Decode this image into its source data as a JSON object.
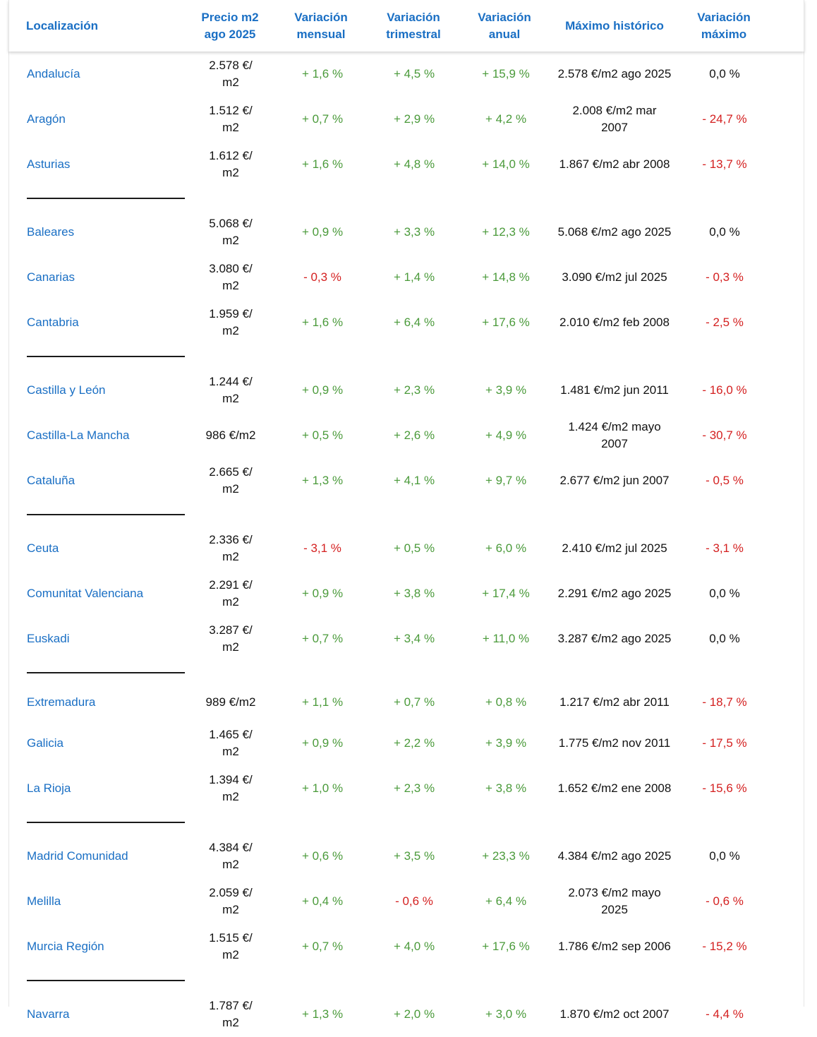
{
  "header": {
    "localizacion": "Localización",
    "precio_l1": "Precio m2",
    "precio_l2": "ago 2025",
    "var_mensual_l1": "Variación",
    "var_mensual_l2": "mensual",
    "var_trimestral_l1": "Variación",
    "var_trimestral_l2": "trimestral",
    "var_anual_l1": "Variación",
    "var_anual_l2": "anual",
    "maximo_historico": "Máximo histórico",
    "var_maximo_l1": "Variación",
    "var_maximo_l2": "máximo"
  },
  "colors": {
    "accent": "#1a6fc4",
    "positive": "#4a9a3a",
    "negative": "#d42020"
  },
  "groups": [
    [
      {
        "name": "Andalucía",
        "price": "2.578 €/\nm2",
        "monthly": "+ 1,6 %",
        "quarterly": "+ 4,5 %",
        "annual": "+ 15,9 %",
        "max": "2.578 €/m2 ago 2025",
        "var_max": "0,0 %"
      },
      {
        "name": "Aragón",
        "price": "1.512 €/\nm2",
        "monthly": "+ 0,7 %",
        "quarterly": "+ 2,9 %",
        "annual": "+ 4,2 %",
        "max": "2.008 €/m2 mar\n2007",
        "var_max": "- 24,7 %"
      },
      {
        "name": "Asturias",
        "price": "1.612 €/\nm2",
        "monthly": "+ 1,6 %",
        "quarterly": "+ 4,8 %",
        "annual": "+ 14,0 %",
        "max": "1.867 €/m2 abr 2008",
        "var_max": "- 13,7 %"
      }
    ],
    [
      {
        "name": "Baleares",
        "price": "5.068 €/\nm2",
        "monthly": "+ 0,9 %",
        "quarterly": "+ 3,3 %",
        "annual": "+ 12,3 %",
        "max": "5.068 €/m2 ago 2025",
        "var_max": "0,0 %"
      },
      {
        "name": "Canarias",
        "price": "3.080 €/\nm2",
        "monthly": "- 0,3 %",
        "quarterly": "+ 1,4 %",
        "annual": "+ 14,8 %",
        "max": "3.090 €/m2 jul 2025",
        "var_max": "- 0,3 %"
      },
      {
        "name": "Cantabria",
        "price": "1.959 €/\nm2",
        "monthly": "+ 1,6 %",
        "quarterly": "+ 6,4 %",
        "annual": "+ 17,6 %",
        "max": "2.010 €/m2 feb 2008",
        "var_max": "- 2,5 %"
      }
    ],
    [
      {
        "name": "Castilla y León",
        "price": "1.244 €/\nm2",
        "monthly": "+ 0,9 %",
        "quarterly": "+ 2,3 %",
        "annual": "+ 3,9 %",
        "max": "1.481 €/m2 jun 2011",
        "var_max": "- 16,0 %"
      },
      {
        "name": "Castilla-La Mancha",
        "price": "986 €/m2",
        "monthly": "+ 0,5 %",
        "quarterly": "+ 2,6 %",
        "annual": "+ 4,9 %",
        "max": "1.424 €/m2 mayo\n2007",
        "var_max": "- 30,7 %"
      },
      {
        "name": "Cataluña",
        "price": "2.665 €/\nm2",
        "monthly": "+ 1,3 %",
        "quarterly": "+ 4,1 %",
        "annual": "+ 9,7 %",
        "max": "2.677 €/m2 jun 2007",
        "var_max": "- 0,5 %"
      }
    ],
    [
      {
        "name": "Ceuta",
        "price": "2.336 €/\nm2",
        "monthly": "- 3,1 %",
        "quarterly": "+ 0,5 %",
        "annual": "+ 6,0 %",
        "max": "2.410 €/m2 jul 2025",
        "var_max": "- 3,1 %"
      },
      {
        "name": "Comunitat Valenciana",
        "price": "2.291 €/\nm2",
        "monthly": "+ 0,9 %",
        "quarterly": "+ 3,8 %",
        "annual": "+ 17,4 %",
        "max": "2.291 €/m2 ago 2025",
        "var_max": "0,0 %"
      },
      {
        "name": "Euskadi",
        "price": "3.287 €/\nm2",
        "monthly": "+ 0,7 %",
        "quarterly": "+ 3,4 %",
        "annual": "+ 11,0 %",
        "max": "3.287 €/m2 ago 2025",
        "var_max": "0,0 %"
      }
    ],
    [
      {
        "name": "Extremadura",
        "price": "989 €/m2",
        "monthly": "+ 1,1 %",
        "quarterly": "+ 0,7 %",
        "annual": "+ 0,8 %",
        "max": "1.217 €/m2 abr 2011",
        "var_max": "- 18,7 %"
      },
      {
        "name": "Galicia",
        "price": "1.465 €/\nm2",
        "monthly": "+ 0,9 %",
        "quarterly": "+ 2,2 %",
        "annual": "+ 3,9 %",
        "max": "1.775 €/m2 nov 2011",
        "var_max": "- 17,5 %"
      },
      {
        "name": "La Rioja",
        "price": "1.394 €/\nm2",
        "monthly": "+ 1,0 %",
        "quarterly": "+ 2,3 %",
        "annual": "+ 3,8 %",
        "max": "1.652 €/m2 ene 2008",
        "var_max": "- 15,6 %"
      }
    ],
    [
      {
        "name": "Madrid Comunidad",
        "price": "4.384 €/\nm2",
        "monthly": "+ 0,6 %",
        "quarterly": "+ 3,5 %",
        "annual": "+ 23,3 %",
        "max": "4.384 €/m2 ago 2025",
        "var_max": "0,0 %"
      },
      {
        "name": "Melilla",
        "price": "2.059 €/\nm2",
        "monthly": "+ 0,4 %",
        "quarterly": "- 0,6 %",
        "annual": "+ 6,4 %",
        "max": "2.073 €/m2 mayo\n2025",
        "var_max": "- 0,6 %"
      },
      {
        "name": "Murcia Región",
        "price": "1.515 €/\nm2",
        "monthly": "+ 0,7 %",
        "quarterly": "+ 4,0 %",
        "annual": "+ 17,6 %",
        "max": "1.786 €/m2 sep 2006",
        "var_max": "- 15,2 %"
      }
    ],
    [
      {
        "name": "Navarra",
        "price": "1.787 €/\nm2",
        "monthly": "+ 1,3 %",
        "quarterly": "+ 2,0 %",
        "annual": "+ 3,0 %",
        "max": "1.870 €/m2 oct 2007",
        "var_max": "- 4,4 %"
      }
    ]
  ]
}
